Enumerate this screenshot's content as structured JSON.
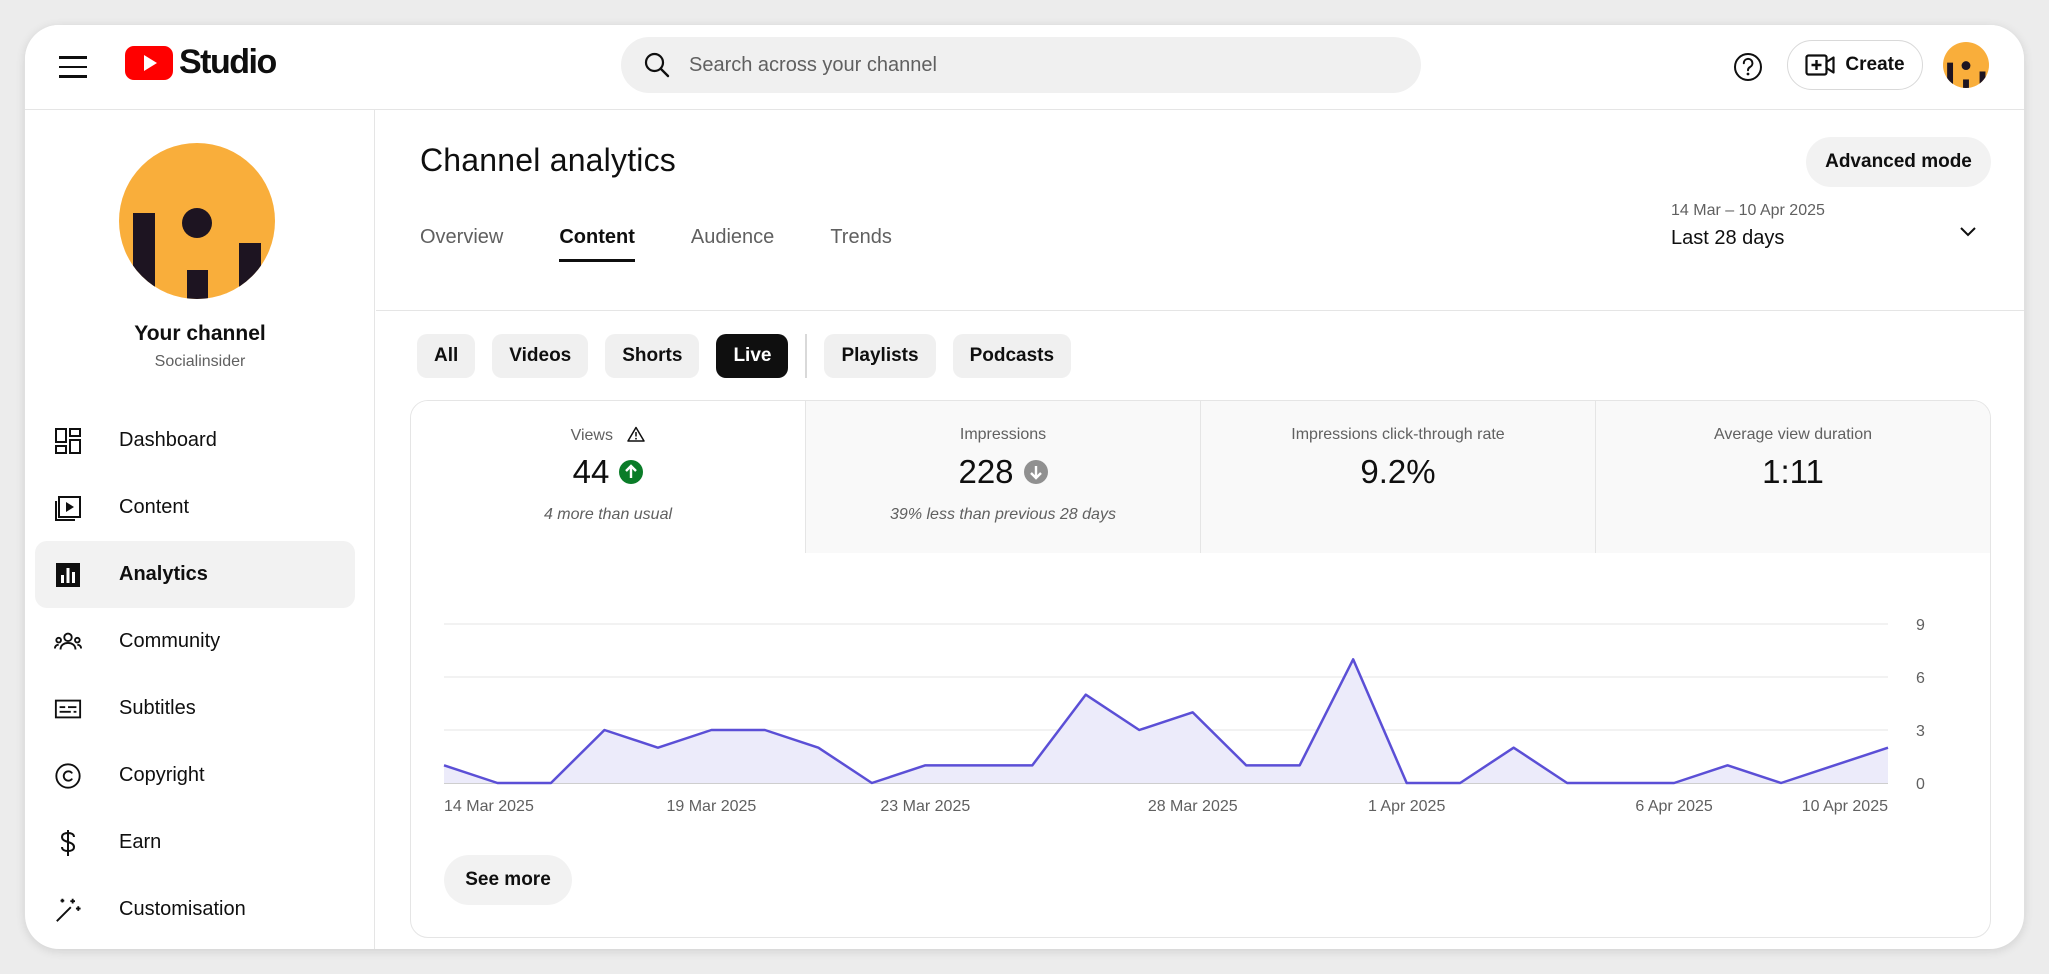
{
  "header": {
    "logo_text": "Studio",
    "search_placeholder": "Search across your channel",
    "create_label": "Create"
  },
  "sidebar": {
    "channel_name": "Your channel",
    "channel_handle": "Socialinsider",
    "items": [
      {
        "label": "Dashboard",
        "icon": "dashboard-icon"
      },
      {
        "label": "Content",
        "icon": "content-icon"
      },
      {
        "label": "Analytics",
        "icon": "analytics-icon",
        "active": true
      },
      {
        "label": "Community",
        "icon": "community-icon"
      },
      {
        "label": "Subtitles",
        "icon": "subtitles-icon"
      },
      {
        "label": "Copyright",
        "icon": "copyright-icon"
      },
      {
        "label": "Earn",
        "icon": "earn-icon"
      },
      {
        "label": "Customisation",
        "icon": "customisation-icon"
      }
    ]
  },
  "main": {
    "title": "Channel analytics",
    "advanced_label": "Advanced mode",
    "tabs": [
      {
        "label": "Overview"
      },
      {
        "label": "Content",
        "active": true
      },
      {
        "label": "Audience"
      },
      {
        "label": "Trends"
      }
    ],
    "date_range": "14 Mar – 10 Apr 2025",
    "date_preset": "Last 28 days",
    "chips": [
      {
        "label": "All"
      },
      {
        "label": "Videos"
      },
      {
        "label": "Shorts"
      },
      {
        "label": "Live",
        "active": true
      },
      {
        "label": "Playlists"
      },
      {
        "label": "Podcasts"
      }
    ],
    "metrics": [
      {
        "label": "Views",
        "value": "44",
        "sub": "4 more than usual",
        "trend": "up",
        "warning": true
      },
      {
        "label": "Impressions",
        "value": "228",
        "sub": "39% less than previous 28 days",
        "trend": "down"
      },
      {
        "label": "Impressions click-through rate",
        "value": "9.2%",
        "sub": ""
      },
      {
        "label": "Average view duration",
        "value": "1:11",
        "sub": ""
      }
    ],
    "see_more_label": "See more"
  },
  "colors": {
    "brand_red": "#ff0000",
    "line": "#5b4fd6",
    "area": "#ecebfa",
    "up_green": "#0a7c28",
    "down_gray": "#909090",
    "avatar_orange": "#f9ae3b"
  },
  "chart_data": {
    "type": "area",
    "series": [
      {
        "name": "Views",
        "values": [
          1,
          0,
          0,
          3,
          2,
          3,
          3,
          2,
          0,
          1,
          1,
          1,
          5,
          3,
          4,
          1,
          1,
          7,
          0,
          0,
          2,
          0,
          0,
          0,
          1,
          0,
          1,
          2
        ]
      }
    ],
    "x": [
      "14 Mar 2025",
      "15 Mar 2025",
      "16 Mar 2025",
      "17 Mar 2025",
      "18 Mar 2025",
      "19 Mar 2025",
      "20 Mar 2025",
      "21 Mar 2025",
      "22 Mar 2025",
      "23 Mar 2025",
      "24 Mar 2025",
      "25 Mar 2025",
      "26 Mar 2025",
      "27 Mar 2025",
      "28 Mar 2025",
      "29 Mar 2025",
      "30 Mar 2025",
      "31 Mar 2025",
      "1 Apr 2025",
      "2 Apr 2025",
      "3 Apr 2025",
      "4 Apr 2025",
      "5 Apr 2025",
      "6 Apr 2025",
      "7 Apr 2025",
      "8 Apr 2025",
      "9 Apr 2025",
      "10 Apr 2025"
    ],
    "x_tick_labels": [
      {
        "index": 0,
        "label": "14 Mar 2025"
      },
      {
        "index": 5,
        "label": "19 Mar 2025"
      },
      {
        "index": 9,
        "label": "23 Mar 2025"
      },
      {
        "index": 14,
        "label": "28 Mar 2025"
      },
      {
        "index": 18,
        "label": "1 Apr 2025"
      },
      {
        "index": 23,
        "label": "6 Apr 2025"
      },
      {
        "index": 27,
        "label": "10 Apr 2025"
      }
    ],
    "y_ticks": [
      0,
      3,
      6,
      9
    ],
    "ylim": [
      0,
      9
    ],
    "grid": true,
    "y_axis_side": "right"
  }
}
